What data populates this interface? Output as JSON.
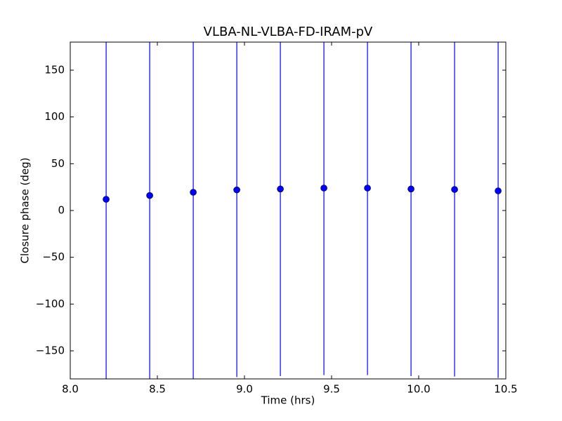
{
  "chart_data": {
    "type": "scatter",
    "title": "VLBA-NL-VLBA-FD-IRAM-pV",
    "xlabel": "Time (hrs)",
    "ylabel": "Closure phase (deg)",
    "x": [
      8.206,
      8.456,
      8.706,
      8.956,
      9.206,
      9.456,
      9.706,
      9.956,
      10.206,
      10.456
    ],
    "values": [
      12,
      16,
      19.5,
      22,
      23,
      24,
      24,
      23,
      22.5,
      21
    ],
    "errors": [
      200,
      200,
      200,
      200,
      200,
      200,
      200,
      200,
      200,
      200
    ],
    "color": "#0000ff",
    "xlim": [
      8.0,
      10.5
    ],
    "xticks": [
      {
        "value": 8,
        "label": "8.0"
      },
      8.5,
      {
        "value": 9,
        "label": "9.0"
      },
      9.5,
      {
        "value": 10,
        "label": "10.0"
      },
      10.5
    ],
    "ylim": [
      -180,
      180
    ],
    "yticks": [
      {
        "value": -150,
        "label": "−150"
      },
      {
        "value": -100,
        "label": "−100"
      },
      {
        "value": -50,
        "label": "−50"
      },
      0,
      50,
      100,
      150
    ]
  }
}
